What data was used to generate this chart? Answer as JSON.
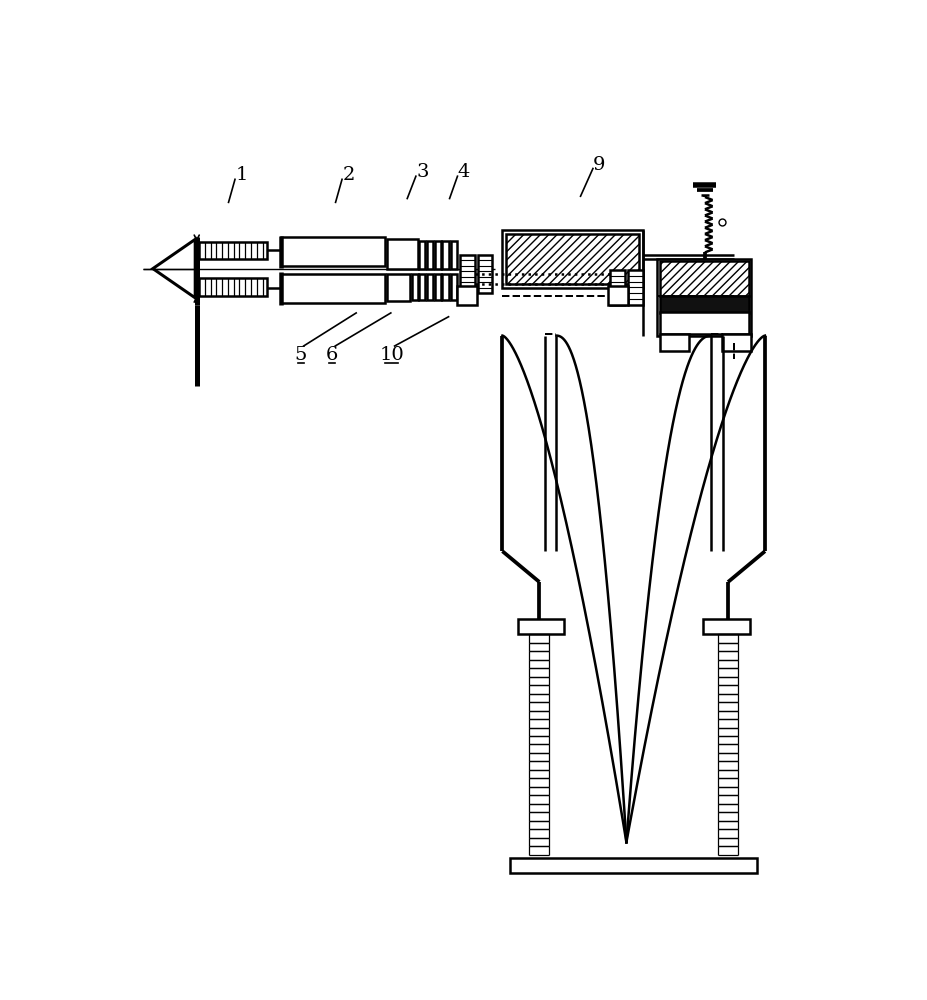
{
  "bg": "#ffffff",
  "lc": "#000000",
  "lw": 1.8
}
